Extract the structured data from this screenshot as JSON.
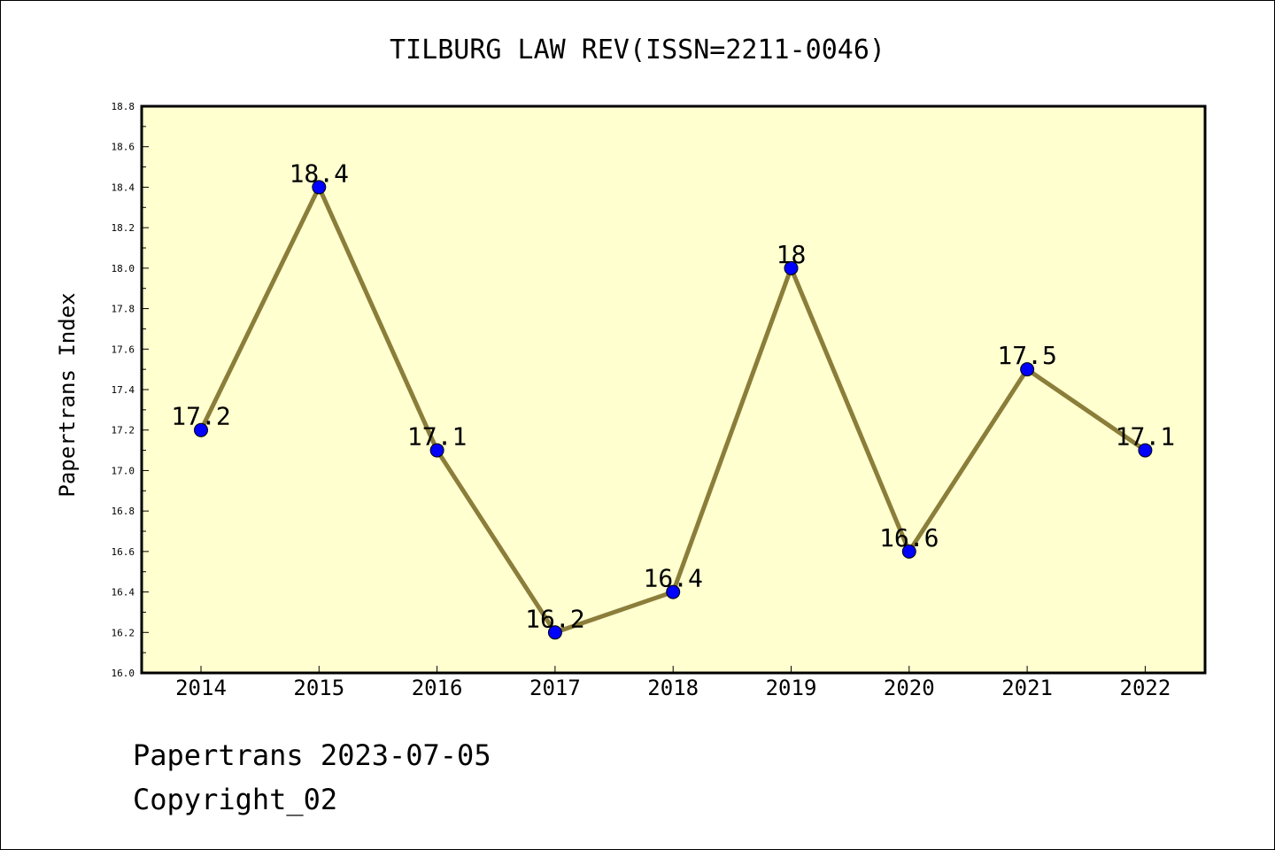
{
  "chart_data": {
    "type": "line",
    "title": "TILBURG LAW REV(ISSN=2211-0046)",
    "xlabel": "",
    "ylabel": "Papertrans Index",
    "categories": [
      "2014",
      "2015",
      "2016",
      "2017",
      "2018",
      "2019",
      "2020",
      "2021",
      "2022"
    ],
    "series": [
      {
        "values": [
          17.2,
          18.4,
          17.1,
          16.2,
          16.4,
          18.0,
          16.6,
          17.5,
          17.1
        ],
        "labels": [
          "17.2",
          "18.4",
          "17.1",
          "16.2",
          "16.4",
          "18",
          "16.6",
          "17.5",
          "17.1"
        ]
      }
    ],
    "ylim": [
      16.0,
      18.8
    ],
    "yticks": [
      "16.0",
      "16.2",
      "16.4",
      "16.6",
      "16.8",
      "17.0",
      "17.2",
      "17.4",
      "17.6",
      "17.8",
      "18.0",
      "18.2",
      "18.4",
      "18.6",
      "18.8"
    ],
    "grid": false,
    "colors": {
      "plot_background": "#ffffd0",
      "line": "#8b7d3a",
      "marker": "#0000ff"
    }
  },
  "footer": {
    "date_line": "Papertrans 2023-07-05",
    "copyright": "Copyright_02"
  }
}
